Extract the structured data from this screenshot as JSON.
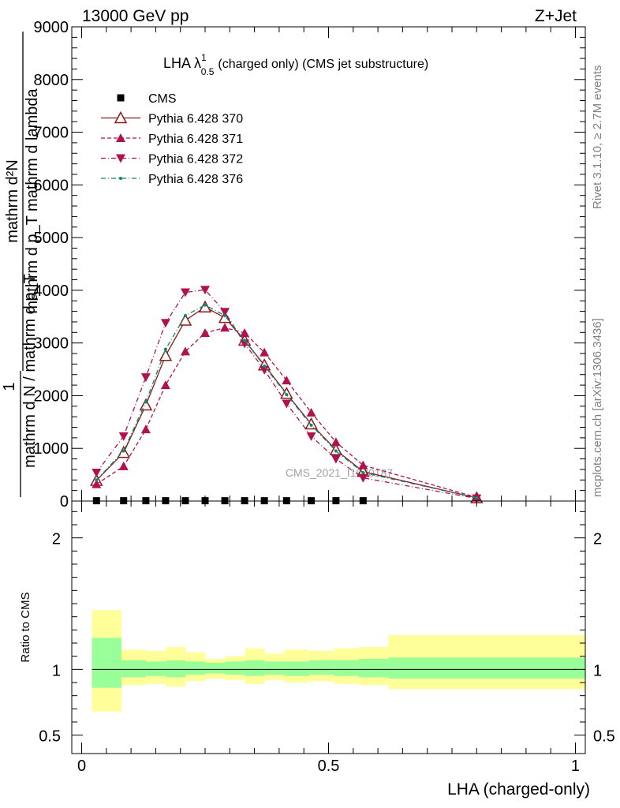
{
  "header": {
    "energy_label": "13000 GeV pp",
    "process_label": "Z+Jet"
  },
  "side_labels": {
    "rivet": "Rivet 3.1.10, ≥ 2.7M events",
    "mcplots": "mcplots.cern.ch [arXiv:1306.3436]"
  },
  "watermark": "CMS_2021_I1920187",
  "ylabel_main": {
    "top_num": "mathrm d²N",
    "top_den": "mathrm d p_T mathrm d lambda",
    "one": "1",
    "bottom": "mathrm d N / mathrm d p_T"
  },
  "ratio_ylabel": "Ratio to CMS",
  "chart_data": [
    {
      "type": "line",
      "title_main": "LHA λ",
      "title_sup": "1",
      "title_sub": "0.5",
      "title_rest": "(charged only) (CMS jet substructure)",
      "xlim": [
        -0.02,
        1.02
      ],
      "ylim": [
        0,
        9000
      ],
      "yticks": [
        0,
        1000,
        2000,
        3000,
        4000,
        5000,
        6000,
        7000,
        8000,
        9000
      ],
      "ytick_labels": [
        "0",
        "1000",
        "2000",
        "3000",
        "4000",
        "5000",
        "6000",
        "7000",
        "8000",
        "9000"
      ],
      "legend_position": "top-left",
      "series": [
        {
          "name": "CMS",
          "color": "#000000",
          "marker": "square",
          "x": [
            0.03,
            0.085,
            0.13,
            0.17,
            0.21,
            0.25,
            0.29,
            0.33,
            0.37,
            0.415,
            0.465,
            0.515,
            0.57
          ],
          "values": [
            6,
            6,
            6,
            6,
            6,
            6,
            6,
            6,
            6,
            6,
            6,
            6,
            6
          ]
        },
        {
          "name": "Pythia 6.428 370",
          "color": "#8b1a1a",
          "marker": "triangle-up-open",
          "line": "solid",
          "x": [
            0.03,
            0.085,
            0.13,
            0.17,
            0.21,
            0.25,
            0.29,
            0.33,
            0.37,
            0.415,
            0.465,
            0.515,
            0.57,
            0.8
          ],
          "values": [
            390,
            920,
            1820,
            2760,
            3430,
            3680,
            3480,
            3050,
            2580,
            2040,
            1460,
            970,
            560,
            60
          ]
        },
        {
          "name": "Pythia 6.428 371",
          "color": "#b0124e",
          "marker": "triangle-up",
          "line": "dashed",
          "x": [
            0.03,
            0.085,
            0.13,
            0.17,
            0.21,
            0.25,
            0.29,
            0.33,
            0.37,
            0.415,
            0.465,
            0.515,
            0.57,
            0.8
          ],
          "values": [
            320,
            660,
            1360,
            2200,
            2840,
            3190,
            3290,
            3190,
            2820,
            2290,
            1680,
            1120,
            680,
            70
          ]
        },
        {
          "name": "Pythia 6.428 372",
          "color": "#b0124e",
          "marker": "triangle-down",
          "line": "dashdot",
          "x": [
            0.03,
            0.085,
            0.13,
            0.17,
            0.21,
            0.25,
            0.29,
            0.33,
            0.37,
            0.415,
            0.465,
            0.515,
            0.57,
            0.8
          ],
          "values": [
            540,
            1230,
            2350,
            3380,
            3960,
            4010,
            3590,
            2990,
            2490,
            1850,
            1230,
            800,
            440,
            50
          ]
        },
        {
          "name": "Pythia 6.428 376",
          "color": "#0b8a6e",
          "marker": "dot",
          "line": "dashdot",
          "x": [
            0.03,
            0.085,
            0.13,
            0.17,
            0.21,
            0.25,
            0.29,
            0.33,
            0.37,
            0.415,
            0.465,
            0.515,
            0.57,
            0.8
          ],
          "values": [
            400,
            950,
            1880,
            2880,
            3520,
            3720,
            3520,
            3050,
            2560,
            2020,
            1440,
            950,
            540,
            60
          ]
        }
      ]
    },
    {
      "type": "area",
      "ylabel": "Ratio to CMS",
      "xlabel": "LHA (charged-only)",
      "xlim": [
        -0.02,
        1.02
      ],
      "ylim": [
        0.36,
        2.28
      ],
      "yticks": [
        0.5,
        1,
        2
      ],
      "ytick_labels": [
        "0.5",
        "1",
        "2"
      ],
      "xticks": [
        0,
        0.5,
        1
      ],
      "xtick_labels": [
        "0",
        "0.5",
        "1"
      ],
      "bin_edges": [
        0.0,
        0.06,
        0.11,
        0.15,
        0.19,
        0.23,
        0.27,
        0.31,
        0.35,
        0.39,
        0.44,
        0.49,
        0.54,
        0.6,
        1.0
      ],
      "stat_band": {
        "color": "#99ff99",
        "lower": [
          0.86,
          0.94,
          0.95,
          0.94,
          0.96,
          0.97,
          0.96,
          0.95,
          0.96,
          0.95,
          0.96,
          0.95,
          0.94,
          0.93
        ],
        "upper": [
          1.24,
          1.07,
          1.06,
          1.07,
          1.06,
          1.05,
          1.06,
          1.07,
          1.06,
          1.06,
          1.07,
          1.07,
          1.08,
          1.09
        ]
      },
      "total_band": {
        "color": "#ffff99",
        "lower": [
          0.68,
          0.88,
          0.89,
          0.87,
          0.91,
          0.93,
          0.92,
          0.89,
          0.92,
          0.9,
          0.91,
          0.89,
          0.88,
          0.85
        ],
        "upper": [
          1.45,
          1.15,
          1.14,
          1.17,
          1.13,
          1.08,
          1.1,
          1.16,
          1.12,
          1.15,
          1.14,
          1.16,
          1.17,
          1.26
        ]
      },
      "reference_line": 1
    }
  ]
}
